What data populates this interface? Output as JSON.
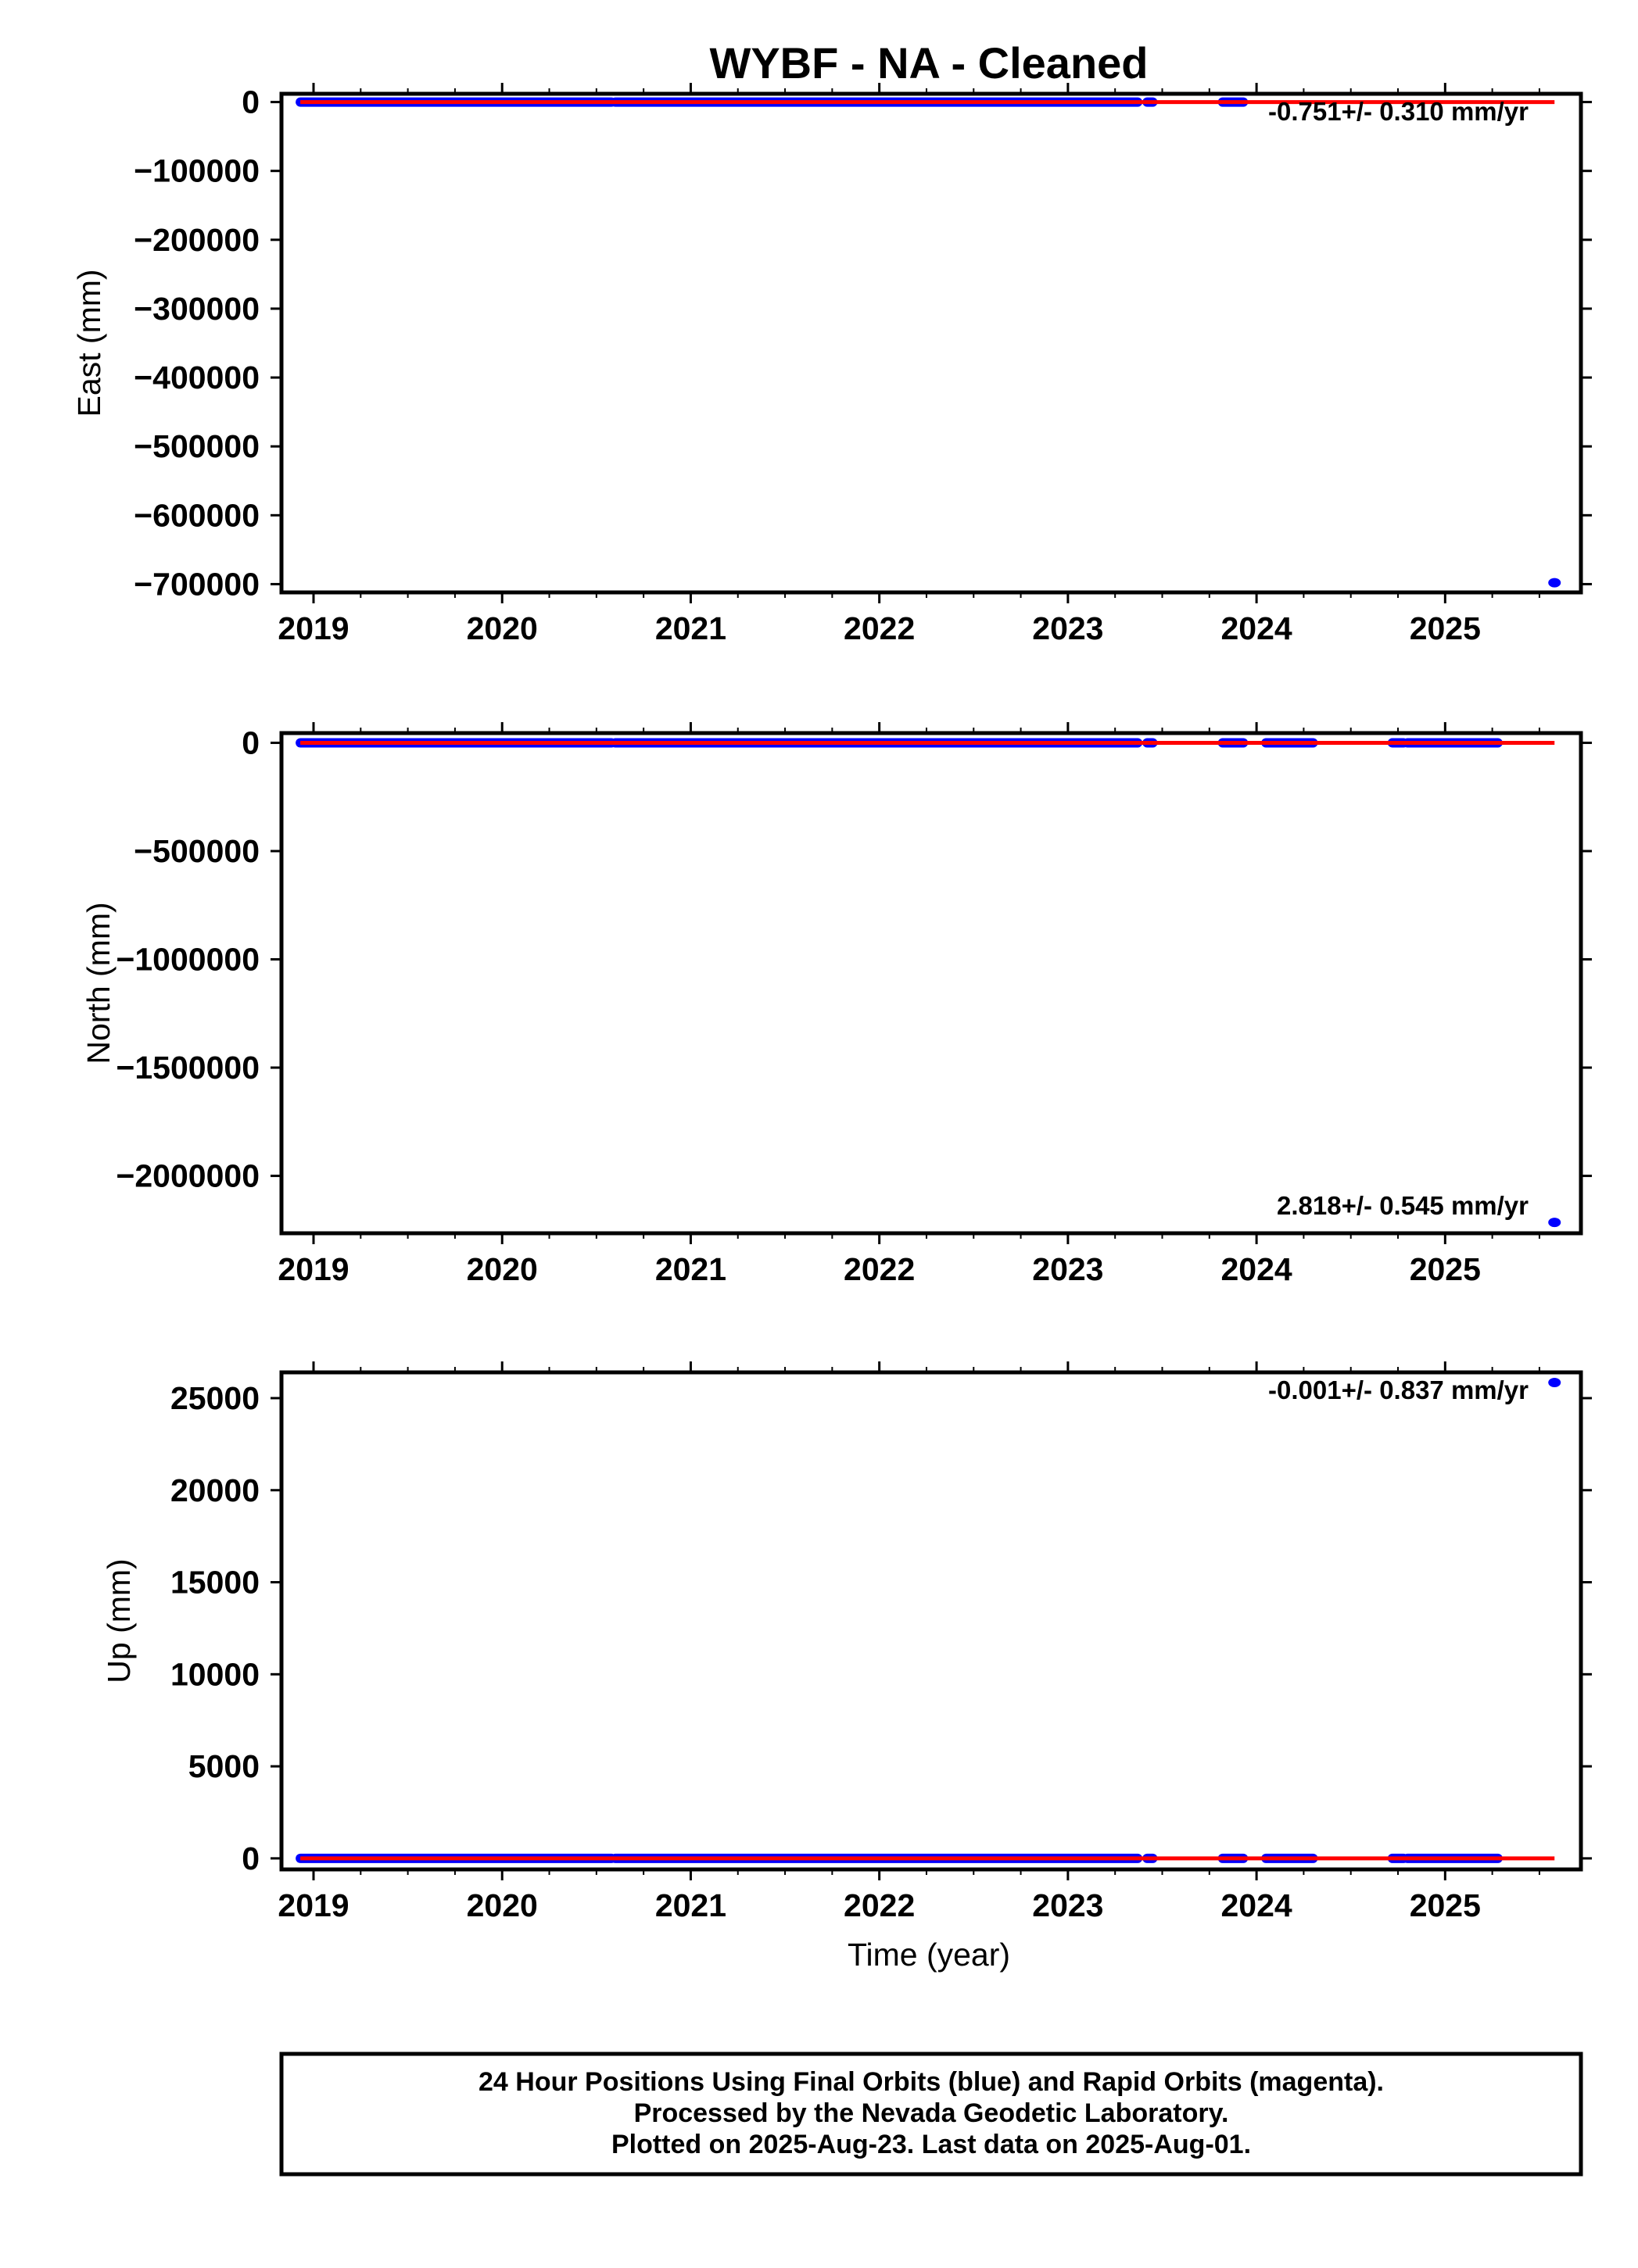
{
  "chart_data": {
    "title": "WYBF  - NA - Cleaned",
    "type": "scatter",
    "xlim": [
      2018.83,
      2025.72
    ],
    "x_ticks": [
      2019,
      2020,
      2021,
      2022,
      2023,
      2024,
      2025
    ],
    "x_tick_labels": [
      "2019",
      "2020",
      "2021",
      "2022",
      "2023",
      "2024",
      "2025"
    ],
    "xlabel": "Time (year)",
    "colors": {
      "final_orbits": "#0000ff",
      "rapid_orbits": "#ff00ff",
      "model": "#ff0000",
      "frame": "#000000"
    },
    "panels": [
      {
        "ylabel": "East (mm)",
        "ylim": [
          -712000,
          12000
        ],
        "y_ticks": [
          0,
          -100000,
          -200000,
          -300000,
          -400000,
          -500000,
          -600000,
          -700000
        ],
        "y_tick_labels": [
          "0",
          "−100000",
          "−200000",
          "−300000",
          "−400000",
          "−500000",
          "−600000",
          "−700000"
        ],
        "rate_text": "-0.751+/- 0.310 mm/yr",
        "rate_position": "top-right",
        "data_segments": [
          [
            2018.93,
            2020.58,
            0
          ],
          [
            2020.6,
            2023.37,
            0
          ],
          [
            2023.42,
            2023.45,
            0
          ],
          [
            2023.82,
            2023.93,
            0
          ]
        ],
        "outliers": [
          [
            2025.58,
            -698000
          ]
        ],
        "model_line": [
          [
            2018.93,
            0
          ],
          [
            2025.58,
            -5
          ]
        ]
      },
      {
        "ylabel": "North (mm)",
        "ylim": [
          -2265000,
          45000
        ],
        "y_ticks": [
          0,
          -500000,
          -1000000,
          -1500000,
          -2000000
        ],
        "y_tick_labels": [
          "0",
          "−500000",
          "−1000000",
          "−1500000",
          "−2000000"
        ],
        "rate_text": "2.818+/- 0.545 mm/yr",
        "rate_position": "bottom-right",
        "data_segments": [
          [
            2018.93,
            2020.58,
            0
          ],
          [
            2020.6,
            2023.37,
            0
          ],
          [
            2023.42,
            2023.45,
            0
          ],
          [
            2023.82,
            2023.93,
            0
          ],
          [
            2024.05,
            2024.3,
            0
          ],
          [
            2024.72,
            2024.78,
            0
          ],
          [
            2024.8,
            2025.28,
            0
          ]
        ],
        "outliers": [
          [
            2025.58,
            -2215000
          ]
        ],
        "model_line": [
          [
            2018.93,
            0
          ],
          [
            2025.58,
            19
          ]
        ]
      },
      {
        "ylabel": "Up (mm)",
        "ylim": [
          -600,
          26400
        ],
        "y_ticks": [
          0,
          5000,
          10000,
          15000,
          20000,
          25000
        ],
        "y_tick_labels": [
          "0",
          "5000",
          "10000",
          "15000",
          "20000",
          "25000"
        ],
        "rate_text": "-0.001+/- 0.837 mm/yr",
        "rate_position": "top-right",
        "data_segments": [
          [
            2018.93,
            2020.58,
            0
          ],
          [
            2020.6,
            2023.37,
            0
          ],
          [
            2023.42,
            2023.45,
            0
          ],
          [
            2023.82,
            2023.93,
            0
          ],
          [
            2024.05,
            2024.3,
            0
          ],
          [
            2024.72,
            2024.78,
            0
          ],
          [
            2024.8,
            2025.28,
            0
          ]
        ],
        "outliers": [
          [
            2025.58,
            25850
          ]
        ],
        "model_line": [
          [
            2018.93,
            0
          ],
          [
            2025.58,
            0
          ]
        ]
      }
    ]
  },
  "footer": {
    "line1": "24 Hour Positions Using Final Orbits (blue) and Rapid Orbits (magenta).",
    "line2": "Processed by the Nevada Geodetic Laboratory.",
    "line3": "Plotted on 2025-Aug-23. Last data on 2025-Aug-01."
  }
}
